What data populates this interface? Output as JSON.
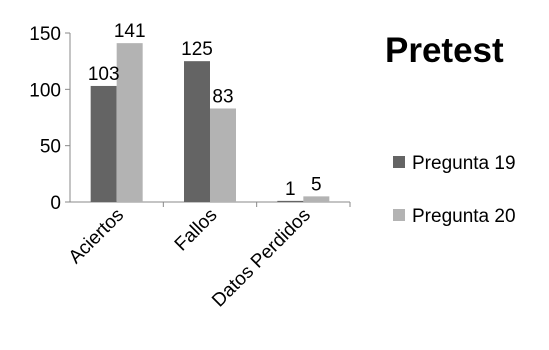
{
  "chart_data": {
    "type": "bar",
    "title": "Pretest",
    "categories": [
      "Aciertos",
      "Fallos",
      "Datos Perdidos"
    ],
    "series": [
      {
        "name": "Pregunta 19",
        "values": [
          103,
          125,
          1
        ],
        "color": "#646464"
      },
      {
        "name": "Pregunta 20",
        "values": [
          141,
          83,
          5
        ],
        "color": "#b3b3b3"
      }
    ],
    "ylim": [
      0,
      150
    ],
    "yticks": [
      0,
      50,
      100,
      150
    ],
    "xlabel": "",
    "ylabel": "",
    "grid": false,
    "legend_position": "right"
  }
}
